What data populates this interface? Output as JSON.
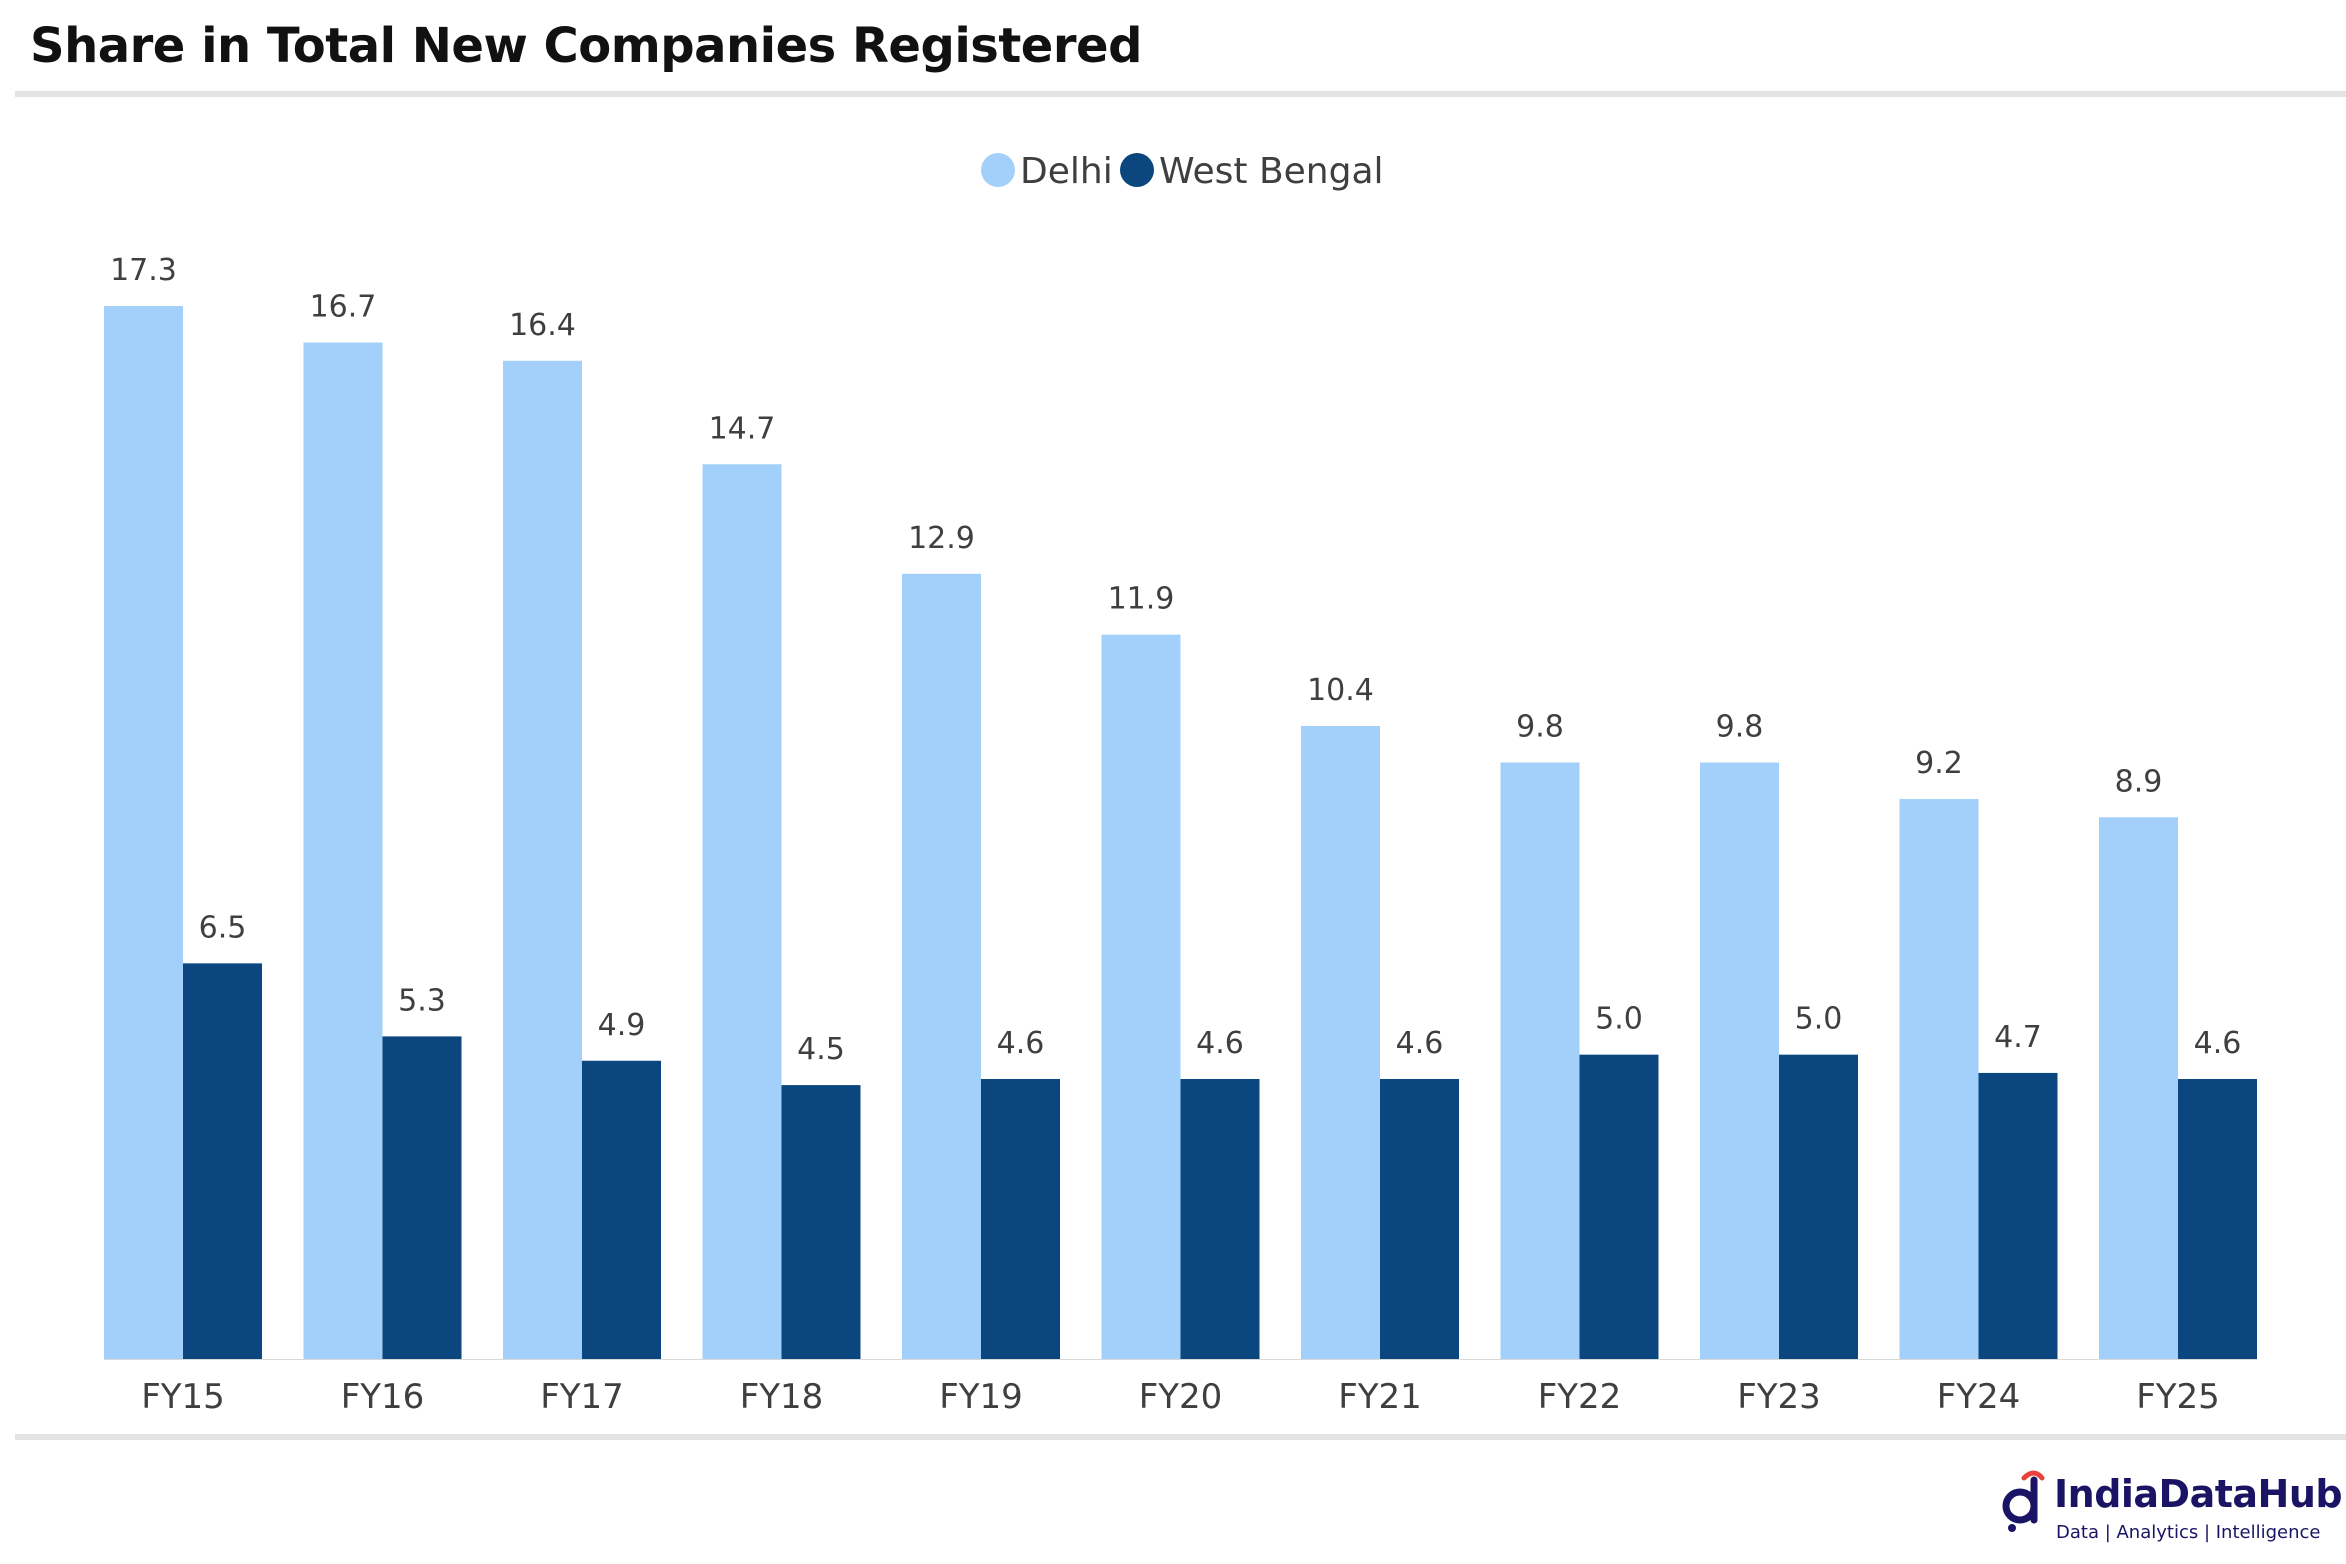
{
  "title": "Share in Total New Companies Registered",
  "brand": {
    "name": "IndiaDataHub",
    "tagline": "Data | Analytics | Intelligence",
    "icon": "indiadatahub-logo-icon"
  },
  "colors": {
    "delhi": "#a2d0fb",
    "west_bengal": "#0b467e",
    "text": "#3f3f3f",
    "rule": "#e3e3e3"
  },
  "chart_data": {
    "type": "bar",
    "title": "Share in Total New Companies Registered",
    "xlabel": "",
    "ylabel": "",
    "categories": [
      "FY15",
      "FY16",
      "FY17",
      "FY18",
      "FY19",
      "FY20",
      "FY21",
      "FY22",
      "FY23",
      "FY24",
      "FY25"
    ],
    "series": [
      {
        "name": "Delhi",
        "color": "#a2d0fb",
        "values": [
          17.3,
          16.7,
          16.4,
          14.7,
          12.9,
          11.9,
          10.4,
          9.8,
          9.8,
          9.2,
          8.9
        ]
      },
      {
        "name": "West Bengal",
        "color": "#0b467e",
        "values": [
          6.5,
          5.3,
          4.9,
          4.5,
          4.6,
          4.6,
          4.6,
          5.0,
          5.0,
          4.7,
          4.6
        ]
      }
    ],
    "ylim": [
      0,
      17.3
    ],
    "grid": false,
    "legend": "top-center",
    "data_labels": true
  }
}
